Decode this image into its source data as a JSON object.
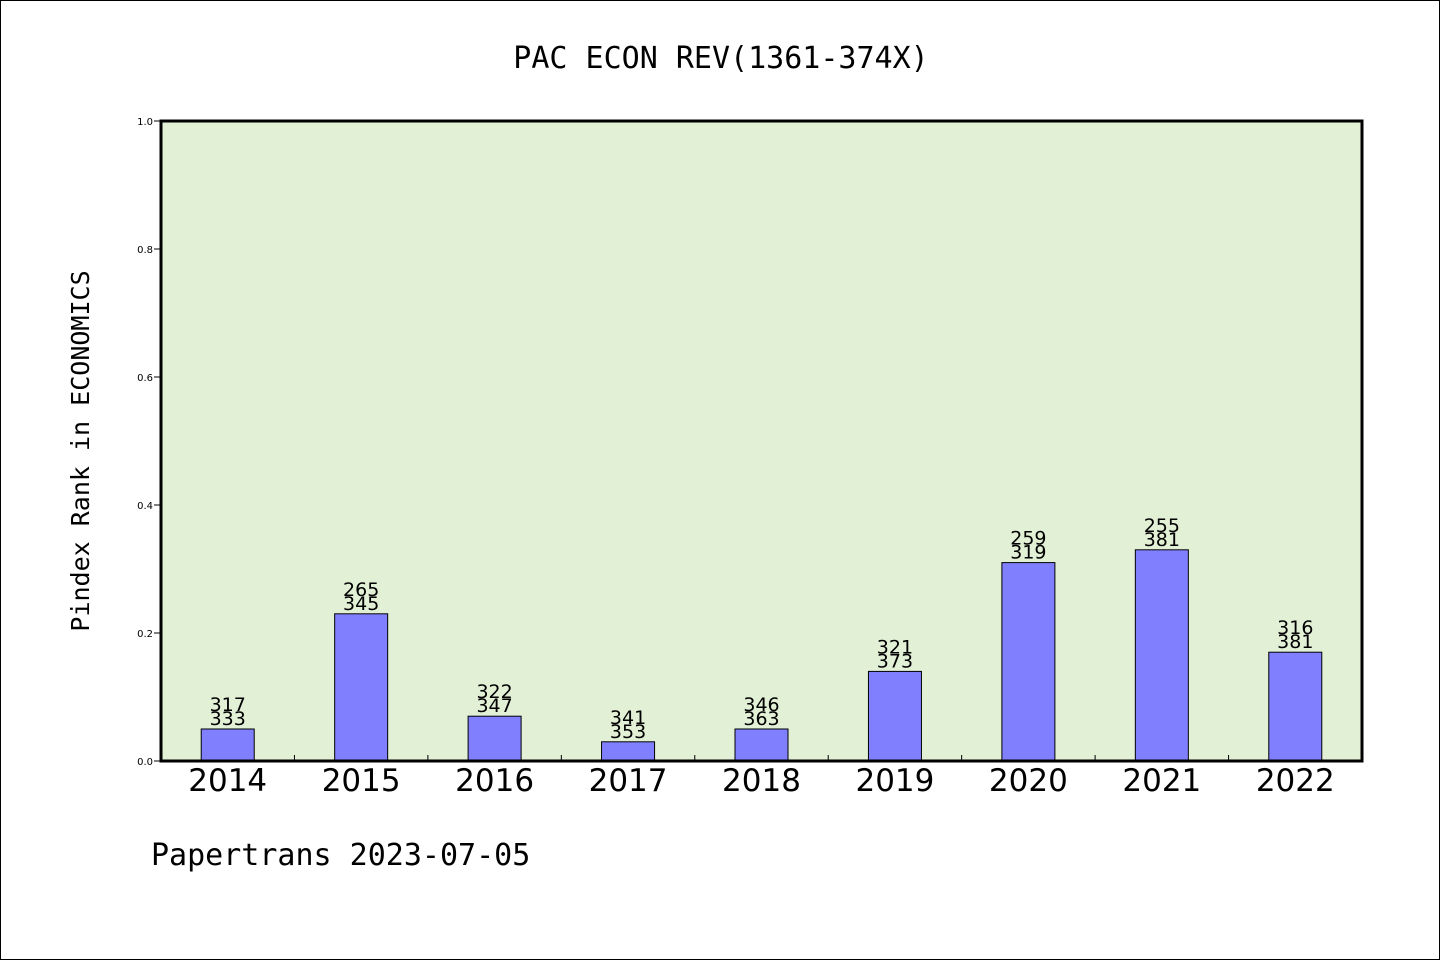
{
  "chart_data": {
    "type": "bar",
    "title": "PAC ECON REV(1361-374X)",
    "ylabel": "Pindex Rank in ECONOMICS",
    "xlabel": "",
    "footer": "Papertrans 2023-07-05",
    "categories": [
      "2014",
      "2015",
      "2016",
      "2017",
      "2018",
      "2019",
      "2020",
      "2021",
      "2022"
    ],
    "values": [
      0.05,
      0.23,
      0.07,
      0.03,
      0.05,
      0.14,
      0.31,
      0.33,
      0.17
    ],
    "labels_top": [
      "317",
      "265",
      "322",
      "341",
      "346",
      "321",
      "259",
      "255",
      "316"
    ],
    "labels_bottom": [
      "333",
      "345",
      "347",
      "353",
      "363",
      "373",
      "319",
      "381",
      "381"
    ],
    "ylim": [
      0,
      1.0
    ],
    "yticks": [
      "0.0",
      "0.2",
      "0.4",
      "0.6",
      "0.8",
      "1.0"
    ],
    "grid": false,
    "colors": {
      "plot_background": "#e2f0d6",
      "bar_fill": "#8080ff",
      "bar_stroke": "#000000"
    }
  }
}
